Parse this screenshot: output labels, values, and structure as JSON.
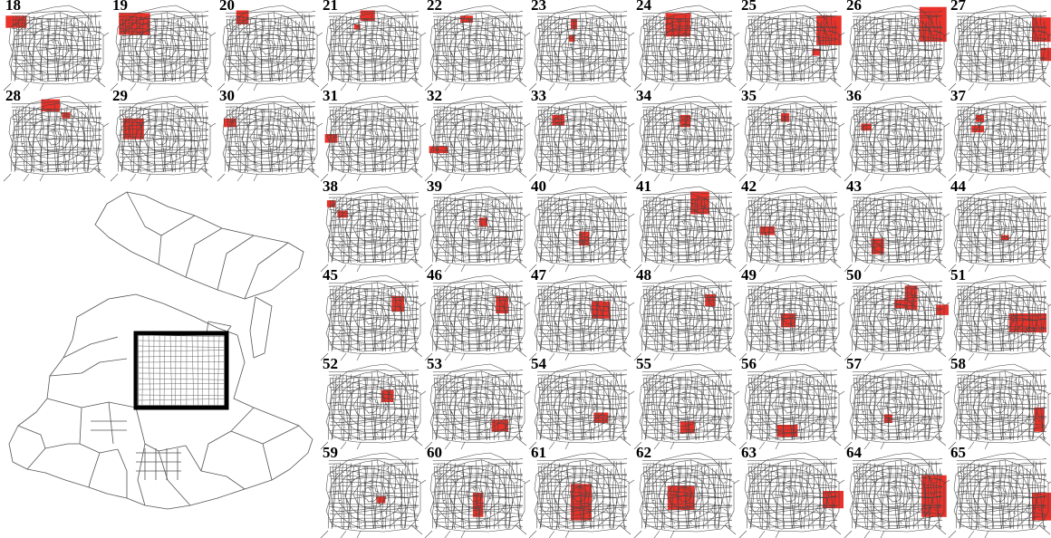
{
  "figure": {
    "domain": "map",
    "panels": [
      {
        "label": "18",
        "highlights": [
          [
            0.02,
            0.18,
            0.22,
            0.32
          ]
        ]
      },
      {
        "label": "19",
        "highlights": [
          [
            0.08,
            0.15,
            0.38,
            0.4
          ]
        ]
      },
      {
        "label": "20",
        "highlights": [
          [
            0.18,
            0.12,
            0.3,
            0.28
          ]
        ]
      },
      {
        "label": "21",
        "highlights": [
          [
            0.38,
            0.12,
            0.52,
            0.24
          ],
          [
            0.32,
            0.28,
            0.38,
            0.34
          ]
        ]
      },
      {
        "label": "22",
        "highlights": [
          [
            0.34,
            0.18,
            0.46,
            0.26
          ]
        ]
      },
      {
        "label": "23",
        "highlights": [
          [
            0.4,
            0.22,
            0.46,
            0.34
          ],
          [
            0.38,
            0.4,
            0.44,
            0.48
          ]
        ]
      },
      {
        "label": "24",
        "highlights": [
          [
            0.3,
            0.15,
            0.54,
            0.42
          ]
        ]
      },
      {
        "label": "25",
        "highlights": [
          [
            0.74,
            0.18,
            0.98,
            0.52
          ],
          [
            0.7,
            0.56,
            0.78,
            0.64
          ]
        ]
      },
      {
        "label": "26",
        "highlights": [
          [
            0.72,
            0.08,
            0.98,
            0.48
          ]
        ]
      },
      {
        "label": "27",
        "highlights": [
          [
            0.8,
            0.2,
            0.98,
            0.48
          ],
          [
            0.88,
            0.55,
            1.0,
            0.7
          ]
        ]
      },
      {
        "label": "28",
        "highlights": [
          [
            0.36,
            0.1,
            0.54,
            0.24
          ],
          [
            0.56,
            0.25,
            0.64,
            0.32
          ]
        ]
      },
      {
        "label": "29",
        "highlights": [
          [
            0.12,
            0.32,
            0.32,
            0.56
          ]
        ]
      },
      {
        "label": "30",
        "highlights": [
          [
            0.06,
            0.32,
            0.18,
            0.42
          ]
        ]
      },
      {
        "label": "31",
        "highlights": [
          [
            0.04,
            0.5,
            0.16,
            0.6
          ]
        ]
      },
      {
        "label": "32",
        "highlights": [
          [
            0.04,
            0.64,
            0.22,
            0.72
          ]
        ]
      },
      {
        "label": "33",
        "highlights": [
          [
            0.22,
            0.28,
            0.34,
            0.4
          ]
        ]
      },
      {
        "label": "34",
        "highlights": [
          [
            0.44,
            0.28,
            0.54,
            0.42
          ]
        ]
      },
      {
        "label": "35",
        "highlights": [
          [
            0.4,
            0.26,
            0.48,
            0.36
          ]
        ]
      },
      {
        "label": "36",
        "highlights": [
          [
            0.16,
            0.38,
            0.26,
            0.46
          ]
        ]
      },
      {
        "label": "37",
        "highlights": [
          [
            0.26,
            0.28,
            0.34,
            0.36
          ],
          [
            0.22,
            0.4,
            0.34,
            0.48
          ]
        ]
      },
      {
        "label": "38",
        "highlights": [
          [
            0.06,
            0.22,
            0.14,
            0.3
          ],
          [
            0.16,
            0.34,
            0.26,
            0.42
          ]
        ]
      },
      {
        "label": "39",
        "highlights": [
          [
            0.52,
            0.42,
            0.6,
            0.52
          ]
        ]
      },
      {
        "label": "40",
        "highlights": [
          [
            0.48,
            0.58,
            0.58,
            0.74
          ]
        ]
      },
      {
        "label": "41",
        "highlights": [
          [
            0.54,
            0.12,
            0.72,
            0.38
          ]
        ]
      },
      {
        "label": "42",
        "highlights": [
          [
            0.2,
            0.52,
            0.34,
            0.62
          ]
        ]
      },
      {
        "label": "43",
        "highlights": [
          [
            0.26,
            0.66,
            0.38,
            0.84
          ]
        ]
      },
      {
        "label": "44",
        "highlights": [
          [
            0.5,
            0.62,
            0.58,
            0.68
          ]
        ]
      },
      {
        "label": "45",
        "highlights": [
          [
            0.68,
            0.3,
            0.8,
            0.48
          ]
        ]
      },
      {
        "label": "46",
        "highlights": [
          [
            0.68,
            0.3,
            0.8,
            0.5
          ]
        ]
      },
      {
        "label": "47",
        "highlights": [
          [
            0.6,
            0.36,
            0.78,
            0.56
          ]
        ]
      },
      {
        "label": "48",
        "highlights": [
          [
            0.68,
            0.28,
            0.78,
            0.42
          ]
        ]
      },
      {
        "label": "49",
        "highlights": [
          [
            0.4,
            0.5,
            0.54,
            0.66
          ]
        ]
      },
      {
        "label": "50",
        "highlights": [
          [
            0.58,
            0.18,
            0.7,
            0.46
          ],
          [
            0.48,
            0.34,
            0.6,
            0.44
          ],
          [
            0.88,
            0.4,
            1.0,
            0.52
          ]
        ]
      },
      {
        "label": "51",
        "highlights": [
          [
            0.58,
            0.5,
            0.94,
            0.72
          ]
        ]
      },
      {
        "label": "52",
        "highlights": [
          [
            0.58,
            0.36,
            0.7,
            0.5
          ]
        ]
      },
      {
        "label": "53",
        "highlights": [
          [
            0.64,
            0.7,
            0.8,
            0.84
          ]
        ]
      },
      {
        "label": "54",
        "highlights": [
          [
            0.62,
            0.62,
            0.76,
            0.74
          ]
        ]
      },
      {
        "label": "55",
        "highlights": [
          [
            0.44,
            0.72,
            0.58,
            0.86
          ]
        ]
      },
      {
        "label": "56",
        "highlights": [
          [
            0.36,
            0.76,
            0.56,
            0.9
          ]
        ]
      },
      {
        "label": "57",
        "highlights": [
          [
            0.38,
            0.64,
            0.46,
            0.74
          ]
        ]
      },
      {
        "label": "58",
        "highlights": [
          [
            0.82,
            0.56,
            0.92,
            0.84
          ]
        ]
      },
      {
        "label": "59",
        "highlights": [
          [
            0.54,
            0.56,
            0.62,
            0.64
          ]
        ]
      },
      {
        "label": "60",
        "highlights": [
          [
            0.46,
            0.52,
            0.56,
            0.8
          ]
        ]
      },
      {
        "label": "61",
        "highlights": [
          [
            0.4,
            0.42,
            0.6,
            0.84
          ]
        ]
      },
      {
        "label": "62",
        "highlights": [
          [
            0.32,
            0.44,
            0.58,
            0.72
          ]
        ]
      },
      {
        "label": "63",
        "highlights": [
          [
            0.8,
            0.5,
            1.0,
            0.7
          ]
        ]
      },
      {
        "label": "64",
        "highlights": [
          [
            0.74,
            0.32,
            0.98,
            0.8
          ]
        ]
      },
      {
        "label": "65",
        "highlights": [
          [
            0.8,
            0.52,
            1.0,
            0.84
          ]
        ]
      }
    ],
    "highlight_color": "#e8322a",
    "line_color": "#444444",
    "inset_frame_color": "#000000"
  }
}
